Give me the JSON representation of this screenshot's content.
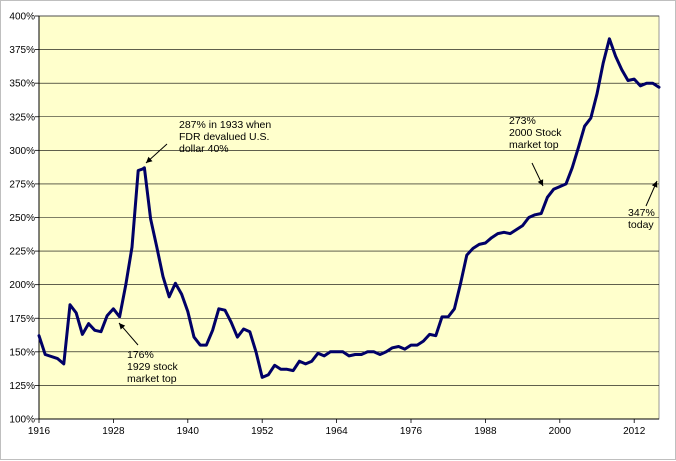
{
  "colors": {
    "plot_background": "#FFFFCC",
    "line": "#000066",
    "grid": "#000000",
    "border": "#bfbfbf"
  },
  "chart_data": {
    "type": "line",
    "title": "",
    "xlabel": "",
    "ylabel": "",
    "xlim": [
      1916,
      2016
    ],
    "ylim": [
      100,
      400
    ],
    "grid": "horizontal",
    "x_ticks": [
      "1916",
      "1928",
      "1940",
      "1952",
      "1964",
      "1976",
      "1988",
      "2000",
      "2012"
    ],
    "y_ticks": [
      "100%",
      "125%",
      "150%",
      "175%",
      "200%",
      "225%",
      "250%",
      "275%",
      "300%",
      "325%",
      "350%",
      "375%",
      "400%"
    ],
    "series": [
      {
        "x": [
          1916,
          1917,
          1919,
          1920,
          1921,
          1922,
          1923,
          1924,
          1925,
          1926,
          1927,
          1928,
          1929,
          1930,
          1931,
          1932,
          1932.7,
          1933,
          1934,
          1935,
          1936,
          1937,
          1938,
          1939,
          1940,
          1941,
          1942,
          1943,
          1944,
          1945,
          1946,
          1947,
          1948,
          1949,
          1950,
          1951,
          1952,
          1953,
          1954,
          1955,
          1956,
          1957,
          1958,
          1959,
          1960,
          1961,
          1962,
          1963,
          1964,
          1965,
          1966,
          1967,
          1968,
          1969,
          1970,
          1971,
          1972,
          1973,
          1974,
          1975,
          1976,
          1977,
          1978,
          1979,
          1980,
          1981,
          1982,
          1983,
          1984,
          1985,
          1986,
          1987,
          1988,
          1989,
          1990,
          1991,
          1992,
          1993,
          1994,
          1995,
          1996,
          1997,
          1998,
          1999,
          2000,
          2001,
          2002,
          2003,
          2004,
          2005,
          2006,
          2007,
          2008,
          2009,
          2010,
          2011,
          2012,
          2013,
          2014,
          2015,
          2016
        ],
        "values": [
          162,
          148,
          145,
          141,
          185,
          179,
          163,
          171,
          166,
          165,
          177,
          182,
          176,
          200,
          228,
          285,
          286,
          287,
          249,
          228,
          206,
          191,
          201,
          193,
          180,
          161,
          155,
          155,
          166,
          182,
          181,
          172,
          161,
          167,
          165,
          150,
          131,
          133,
          140,
          137,
          137,
          136,
          143,
          141,
          143,
          149,
          147,
          150,
          150,
          150,
          147,
          148,
          148,
          150,
          150,
          148,
          150,
          153,
          154,
          152,
          155,
          155,
          158,
          163,
          162,
          176,
          176,
          182,
          201,
          222,
          227,
          230,
          231,
          235,
          238,
          239,
          238,
          241,
          244,
          250,
          252,
          253,
          265,
          271,
          273,
          275,
          287,
          302,
          318,
          324,
          342,
          365,
          383,
          370,
          360,
          352,
          353,
          348,
          350,
          350,
          347
        ]
      }
    ],
    "annotations": [
      {
        "lines": [
          "287% in 1933 when",
          "FDR devalued U.S.",
          "dollar 40%"
        ],
        "target": {
          "x": 1932.5,
          "y": 287
        }
      },
      {
        "lines": [
          "176%",
          "1929 stock",
          "market top"
        ],
        "target": {
          "x": 1929,
          "y": 176
        }
      },
      {
        "lines": [
          "273%",
          "2000 Stock",
          "market top"
        ],
        "target": {
          "x": 2000,
          "y": 273
        }
      },
      {
        "lines": [
          "347%",
          "today"
        ],
        "target": {
          "x": 2016,
          "y": 347
        }
      }
    ]
  }
}
